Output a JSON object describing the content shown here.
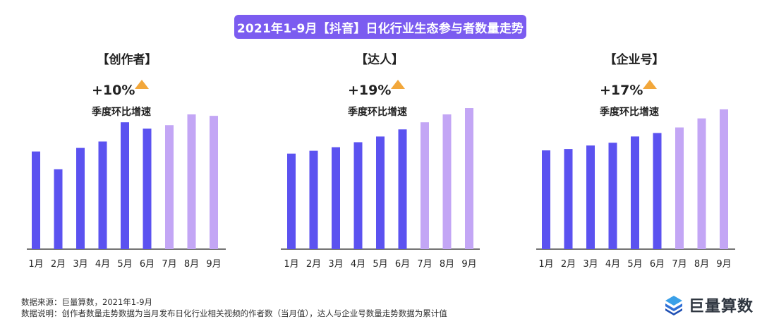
{
  "title": "2021年1-9月【抖音】日化行业生态参与者数量走势",
  "panels": [
    {
      "title": "【创作者】",
      "growth": "+10%",
      "growth_label": "季度环比增速"
    },
    {
      "title": "【达人】",
      "growth": "+19%",
      "growth_label": "季度环比增速"
    },
    {
      "title": "【企业号】",
      "growth": "+17%",
      "growth_label": "季度环比增速"
    }
  ],
  "colors": {
    "actual": "#5b52f0",
    "later": "#c3a6f5",
    "accent": "#7b5cf0",
    "arrow": "#f2a73b"
  },
  "chart_data": [
    {
      "type": "bar",
      "title": "【创作者】",
      "categories": [
        "1月",
        "2月",
        "3月",
        "4月",
        "5月",
        "6月",
        "7月",
        "8月",
        "9月"
      ],
      "values": [
        137,
        112,
        142,
        151,
        178,
        169,
        174,
        189,
        187
      ],
      "ylim": [
        0,
        200
      ]
    },
    {
      "type": "bar",
      "title": "【达人】",
      "categories": [
        "1月",
        "2月",
        "3月",
        "4月",
        "5月",
        "6月",
        "7月",
        "8月",
        "9月"
      ],
      "values": [
        134,
        138,
        143,
        150,
        158,
        168,
        178,
        189,
        198
      ],
      "ylim": [
        0,
        200
      ]
    },
    {
      "type": "bar",
      "title": "【企业号】",
      "categories": [
        "1月",
        "2月",
        "3月",
        "4月",
        "5月",
        "6月",
        "7月",
        "8月",
        "9月"
      ],
      "values": [
        142,
        144,
        149,
        153,
        162,
        167,
        175,
        188,
        201
      ],
      "ylim": [
        0,
        205
      ]
    }
  ],
  "footer": {
    "source": "数据来源：巨量算数，2021年1-9月",
    "note": "数据说明：创作者数量走势数据为当月发布日化行业相关视频的作者数（当月值），达人与企业号数量走势数据为累计值"
  },
  "logo": {
    "text": "巨量算数",
    "icon": "layered-cube-icon"
  }
}
